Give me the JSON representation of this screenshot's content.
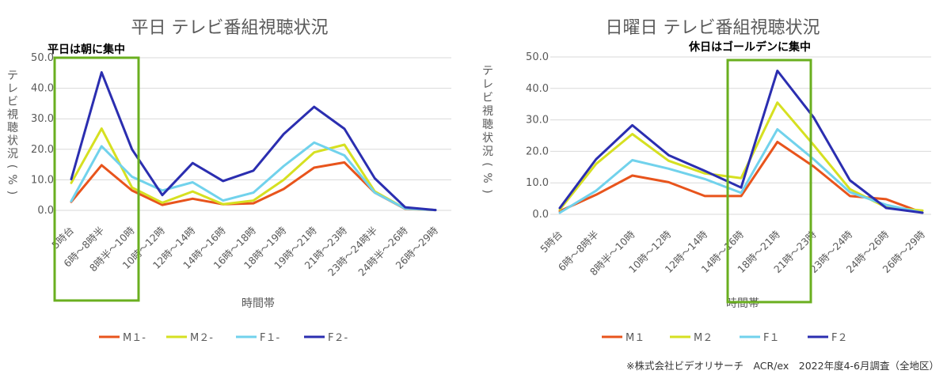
{
  "chart_data": [
    {
      "type": "line",
      "title": "平日 テレビ番組視聴状況",
      "xlabel": "時間帯",
      "ylabel": "テレビ視聴状況(%)",
      "ylim": [
        0,
        50
      ],
      "yticks": [
        "0.0",
        "10.0",
        "20.0",
        "30.0",
        "40.0",
        "50.0"
      ],
      "grid": true,
      "categories": [
        "5時台",
        "6時～8時半",
        "8時半～10時",
        "10時～12時",
        "12時～14時",
        "14時～16時",
        "16時～18時",
        "18時～19時",
        "19時～21時",
        "21時～23時",
        "23時～24時半",
        "24時半～26時",
        "26時～29時"
      ],
      "series": [
        {
          "name": "M１-",
          "color": "#E8541C",
          "values": [
            2.8,
            14.8,
            6.5,
            1.8,
            3.8,
            2.0,
            2.3,
            7.0,
            14.0,
            15.7,
            5.8,
            0.5,
            0.1
          ]
        },
        {
          "name": "M２-",
          "color": "#D6E021",
          "values": [
            9.0,
            26.8,
            7.5,
            2.5,
            6.2,
            2.0,
            3.2,
            10.0,
            19.0,
            21.5,
            6.2,
            0.6,
            0.1
          ]
        },
        {
          "name": "F１-",
          "color": "#71D2EC",
          "values": [
            3.0,
            21.0,
            11.0,
            6.5,
            9.2,
            3.2,
            5.8,
            14.5,
            22.2,
            18.0,
            5.8,
            0.6,
            0.1
          ]
        },
        {
          "name": "F２-",
          "color": "#2B2EB0",
          "values": [
            10.2,
            45.2,
            20.0,
            5.0,
            15.5,
            9.6,
            13.0,
            25.0,
            33.9,
            26.7,
            10.5,
            1.0,
            0.1
          ]
        }
      ],
      "legend_position": "bottom",
      "annotation": {
        "text": "平日は朝に集中",
        "box_color": "#6AAF1F"
      }
    },
    {
      "type": "line",
      "title": "日曜日 テレビ番組視聴状況",
      "xlabel": "時間帯",
      "ylabel": "テレビ視聴状況(%)",
      "ylim": [
        0,
        50
      ],
      "yticks": [
        "0.0",
        "10.0",
        "20.0",
        "30.0",
        "40.0",
        "50.0"
      ],
      "grid": true,
      "categories": [
        "5時台",
        "6時～8時半",
        "8時半～10時",
        "10時～12時",
        "12時～14時",
        "14時～16時",
        "18時～21時",
        "21時～23時",
        "23時～24時",
        "24時～26時",
        "26時～29時"
      ],
      "series": [
        {
          "name": "M１",
          "color": "#E8541C",
          "values": [
            1.0,
            6.2,
            12.3,
            10.2,
            5.8,
            5.8,
            23.0,
            15.2,
            5.8,
            4.8,
            0.5
          ]
        },
        {
          "name": "M２",
          "color": "#D6E021",
          "values": [
            1.5,
            16.0,
            25.5,
            17.0,
            13.0,
            11.5,
            35.5,
            22.0,
            8.0,
            2.2,
            1.2
          ]
        },
        {
          "name": "F１",
          "color": "#71D2EC",
          "values": [
            0.5,
            7.5,
            17.2,
            14.5,
            11.2,
            6.8,
            27.0,
            17.5,
            7.0,
            3.0,
            0.5
          ]
        },
        {
          "name": "F２",
          "color": "#2B2EB0",
          "values": [
            2.0,
            17.5,
            28.3,
            18.8,
            13.8,
            8.5,
            45.6,
            30.8,
            10.8,
            2.0,
            0.5
          ]
        }
      ],
      "legend_position": "bottom",
      "annotation": {
        "text": "休日はゴールデンに集中",
        "box_color": "#6AAF1F"
      }
    }
  ],
  "footnote": "※株式会社ビデオリサーチ　ACR/ex　2022年度4-6月調査（全地区）"
}
